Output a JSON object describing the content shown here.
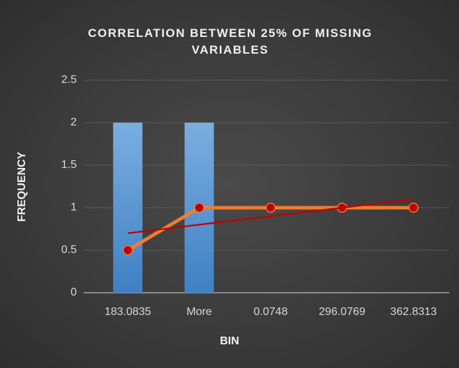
{
  "chart_data": {
    "type": "bar_line",
    "title": "CORRELATION BETWEEN 25% OF MISSING VARIABLES",
    "x_label": "BIN",
    "y_label": "FREQUENCY",
    "categories": [
      "183.0835",
      "More",
      "0.0748",
      "296.0769",
      "362.8313"
    ],
    "series": [
      {
        "type": "bar",
        "color": "#5b9bd5",
        "values": [
          2,
          2,
          0,
          0,
          0
        ]
      },
      {
        "type": "line",
        "color": "#ed7d31",
        "marker_color": "#c00000",
        "values": [
          0.5,
          1,
          1,
          1,
          1
        ]
      },
      {
        "type": "trendline",
        "color": "#c00000",
        "values": [
          0.7,
          0.8,
          0.9,
          1.0,
          1.1
        ]
      }
    ],
    "ylim": [
      0,
      2.5
    ],
    "yticks": [
      0,
      0.5,
      1,
      1.5,
      2,
      2.5
    ],
    "grid": true
  }
}
